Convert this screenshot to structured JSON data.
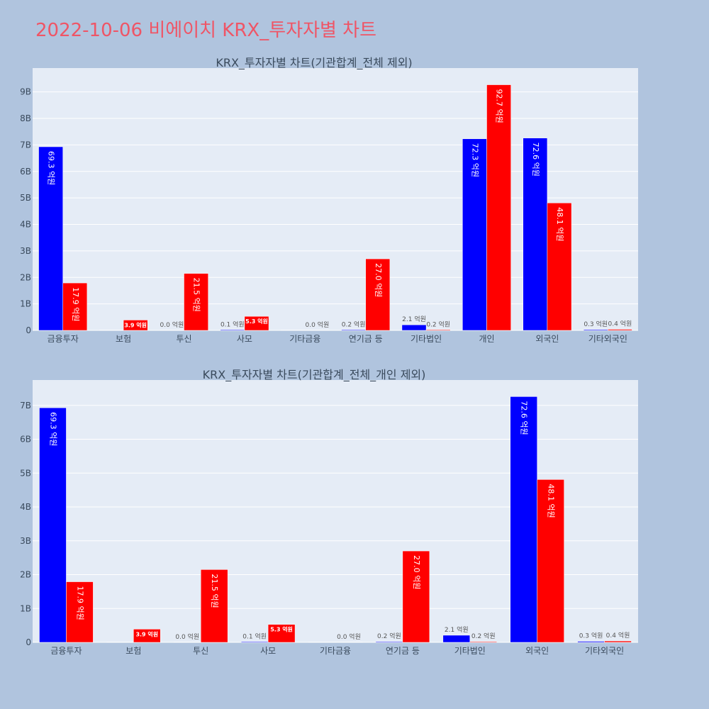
{
  "page_title": "2022-10-06 비에이치 KRX_투자자별 차트",
  "colors": {
    "buy": "#0000ff",
    "sell": "#ff0000",
    "plot_bg": "#e5ecf6",
    "page_bg": "#b0c4de",
    "title": "#ef5566"
  },
  "chart_data": [
    {
      "type": "bar",
      "title": "KRX_투자자별 차트(기관합계_전체 제외)",
      "categories": [
        "금융투자",
        "보험",
        "투신",
        "사모",
        "기타금융",
        "연기금 등",
        "기타법인",
        "개인",
        "외국인",
        "기타외국인"
      ],
      "ylim": [
        0,
        9.9
      ],
      "yticks": [
        0,
        1,
        2,
        3,
        4,
        5,
        6,
        7,
        8,
        9
      ],
      "ytick_labels": [
        "0",
        "1B",
        "2B",
        "3B",
        "4B",
        "5B",
        "6B",
        "7B",
        "8B",
        "9B"
      ],
      "grid": true,
      "series": [
        {
          "color": "#0000ff",
          "values": [
            6.93,
            0,
            0.0,
            0.01,
            0,
            0.02,
            0.21,
            7.23,
            7.26,
            0.03
          ],
          "labels": [
            "69.3 억원",
            "",
            "0.0 억원",
            "0.1 억원",
            "",
            "0.2 억원",
            "2.1 억원",
            "72.3 억원",
            "72.6 억원",
            "0.3 억원"
          ]
        },
        {
          "color": "#ff0000",
          "values": [
            1.79,
            0.39,
            2.15,
            0.53,
            0.0,
            2.7,
            0.02,
            9.27,
            4.81,
            0.04
          ],
          "labels": [
            "17.9 억원",
            "3.9 억원",
            "21.5 억원",
            "5.3 억원",
            "0.0 억원",
            "27.0 억원",
            "0.2 억원",
            "92.7 억원",
            "48.1 억원",
            "0.4 억원"
          ]
        }
      ]
    },
    {
      "type": "bar",
      "title": "KRX_투자자별 차트(기관합계_전체_개인 제외)",
      "categories": [
        "금융투자",
        "보험",
        "투신",
        "사모",
        "기타금융",
        "연기금 등",
        "기타법인",
        "외국인",
        "기타외국인"
      ],
      "ylim": [
        0,
        7.75
      ],
      "yticks": [
        0,
        1,
        2,
        3,
        4,
        5,
        6,
        7
      ],
      "ytick_labels": [
        "0",
        "1B",
        "2B",
        "3B",
        "4B",
        "5B",
        "6B",
        "7B"
      ],
      "grid": true,
      "series": [
        {
          "color": "#0000ff",
          "values": [
            6.93,
            0,
            0.0,
            0.01,
            0,
            0.02,
            0.21,
            7.26,
            0.03
          ],
          "labels": [
            "69.3 억원",
            "",
            "0.0 억원",
            "0.1 억원",
            "",
            "0.2 억원",
            "2.1 억원",
            "72.6 억원",
            "0.3 억원"
          ]
        },
        {
          "color": "#ff0000",
          "values": [
            1.79,
            0.39,
            2.15,
            0.53,
            0.0,
            2.7,
            0.02,
            4.81,
            0.04
          ],
          "labels": [
            "17.9 억원",
            "3.9 억원",
            "21.5 억원",
            "5.3 억원",
            "0.0 억원",
            "27.0 억원",
            "0.2 억원",
            "48.1 억원",
            "0.4 억원"
          ]
        }
      ]
    }
  ]
}
